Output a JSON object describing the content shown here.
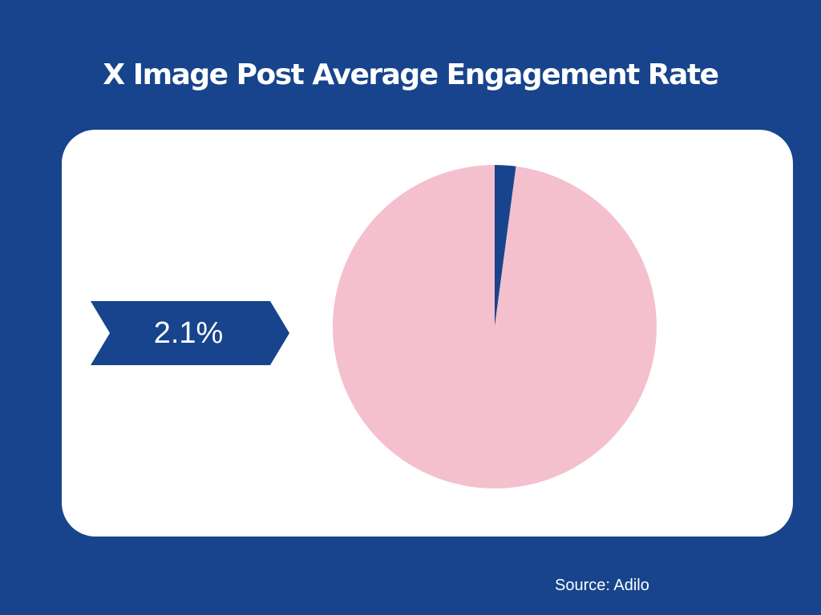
{
  "title": "X Image Post Average Engagement Rate",
  "value_label": "2.1%",
  "source": "Source: Adilo",
  "colors": {
    "background": "#17448c",
    "card": "#ffffff",
    "highlight_slice": "#17448c",
    "remainder_slice": "#f4c0cd"
  },
  "chart_data": {
    "type": "pie",
    "title": "X Image Post Average Engagement Rate",
    "slices": [
      {
        "value": 2.1,
        "color": "#17448c"
      },
      {
        "value": 97.9,
        "color": "#f4c0cd"
      }
    ],
    "annotation": "2.1%"
  }
}
